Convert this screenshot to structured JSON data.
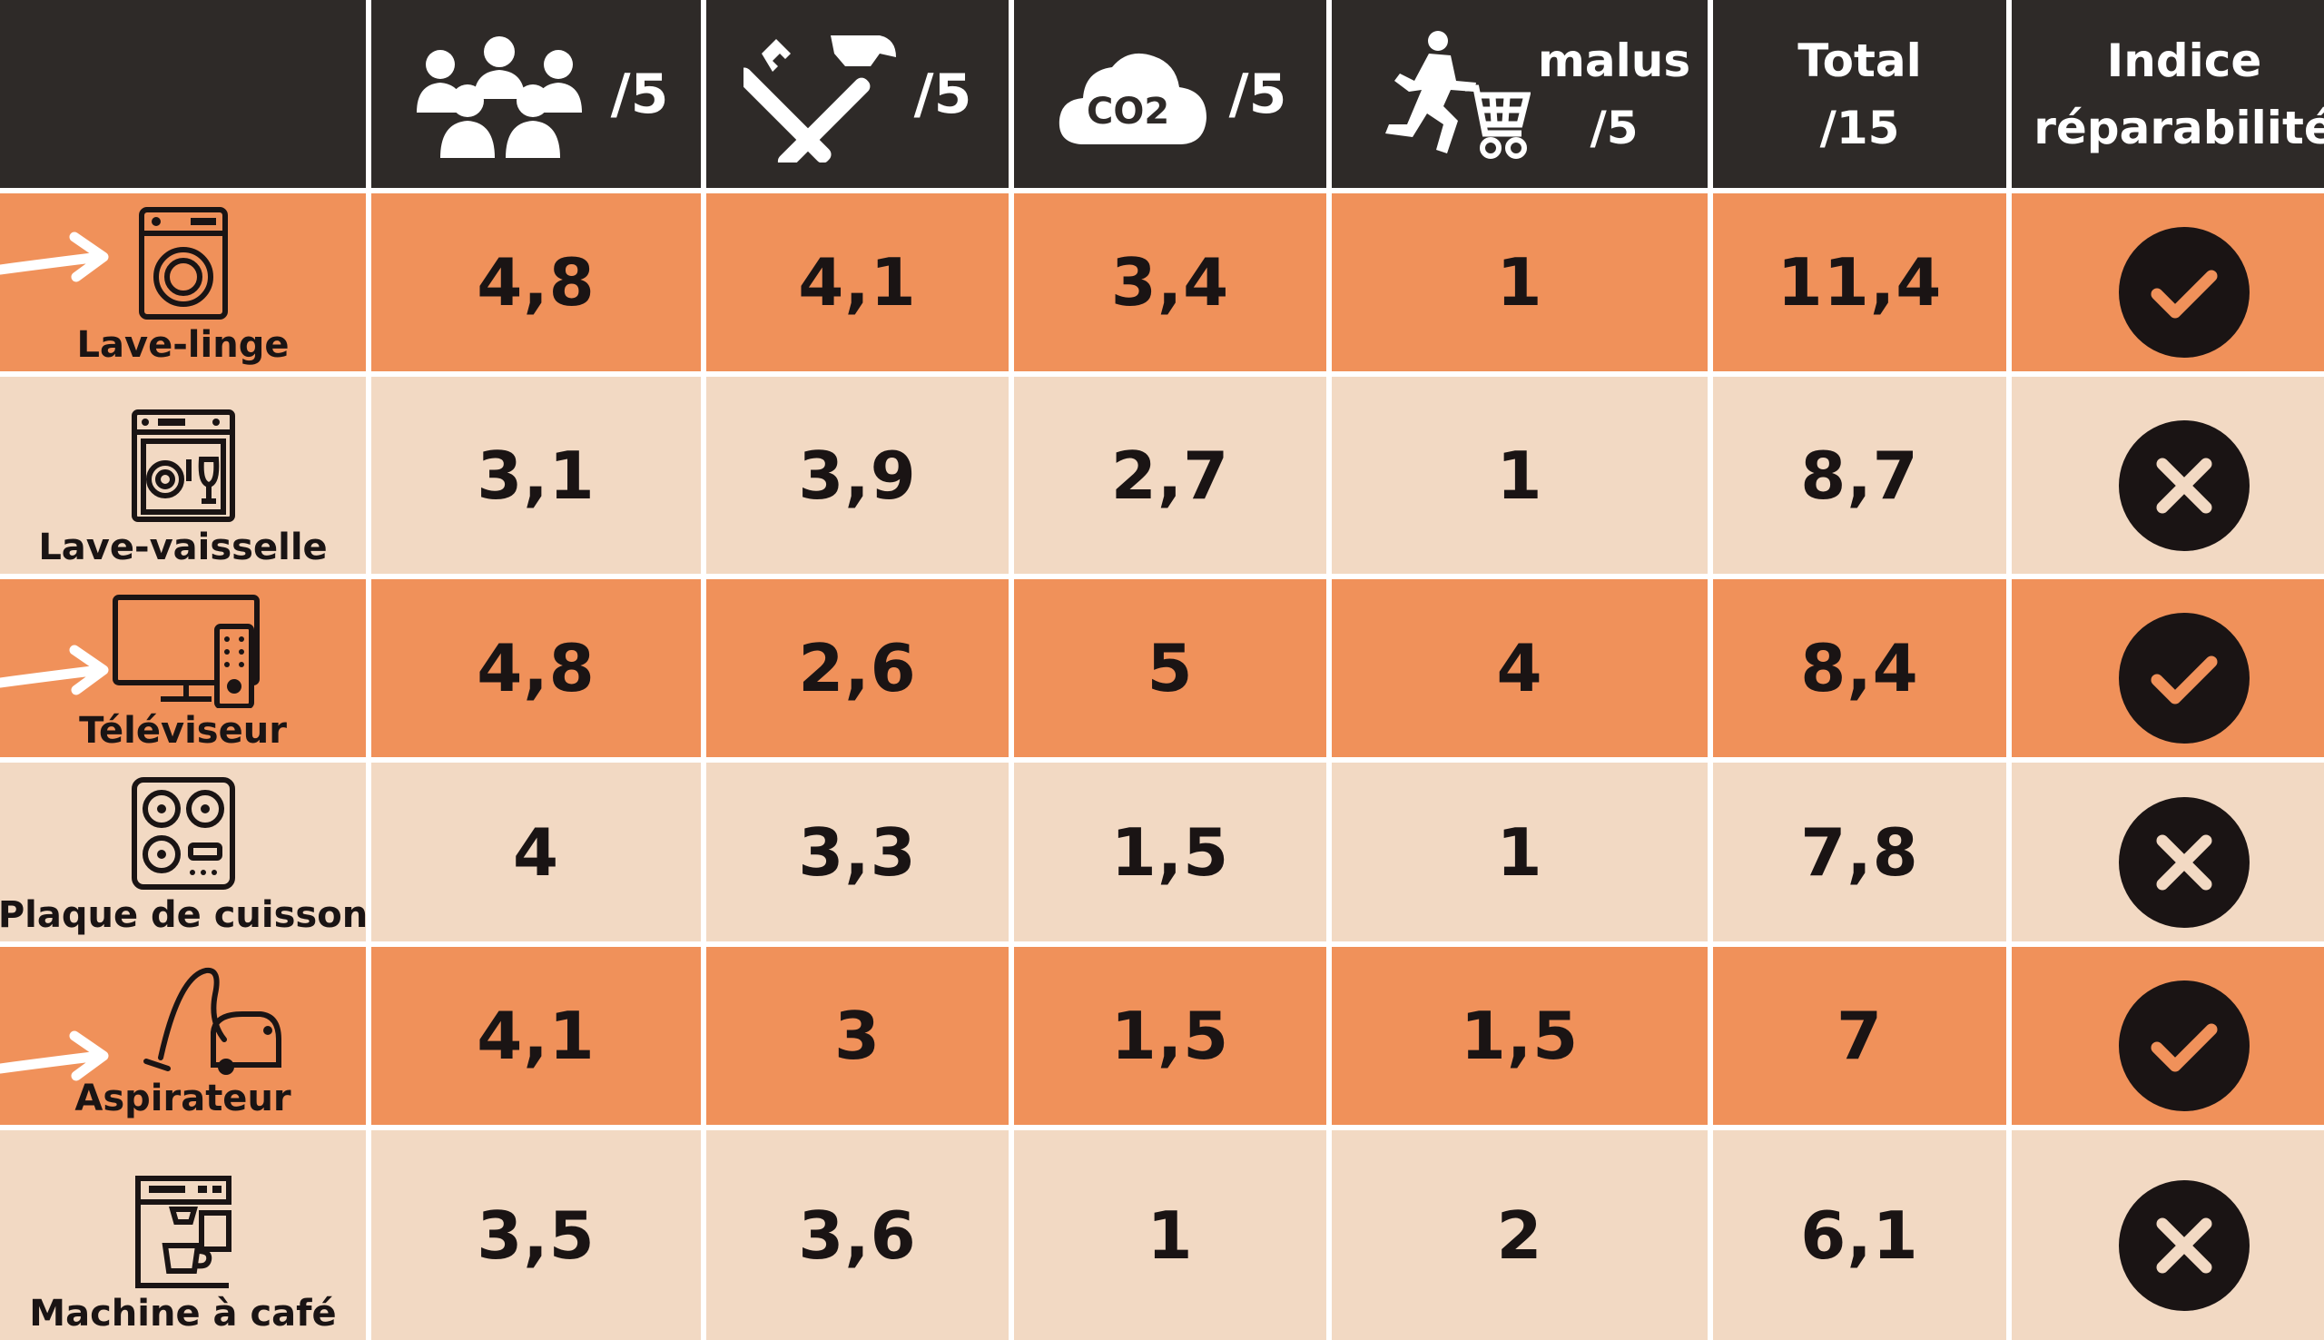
{
  "header": {
    "population_denom": "/5",
    "tools_denom": "/5",
    "co2_label": "CO2",
    "co2_denom": "/5",
    "malus_label": "malus",
    "malus_denom": "/5",
    "total_label": "Total",
    "total_denom": "/15",
    "index_line1": "Indice",
    "index_line2": "réparabilité"
  },
  "rows": [
    {
      "appliance": "Lave-linge",
      "icon": "washing-machine-icon",
      "arrow": true,
      "c1": "4,8",
      "c2": "4,1",
      "c3": "3,4",
      "c4": "1",
      "total": "11,4",
      "status": "check"
    },
    {
      "appliance": "Lave-vaisselle",
      "icon": "dishwasher-icon",
      "arrow": false,
      "c1": "3,1",
      "c2": "3,9",
      "c3": "2,7",
      "c4": "1",
      "total": "8,7",
      "status": "cross"
    },
    {
      "appliance": "Téléviseur",
      "icon": "television-icon",
      "arrow": true,
      "c1": "4,8",
      "c2": "2,6",
      "c3": "5",
      "c4": "4",
      "total": "8,4",
      "status": "check"
    },
    {
      "appliance": "Plaque de cuisson",
      "icon": "cooktop-icon",
      "arrow": false,
      "c1": "4",
      "c2": "3,3",
      "c3": "1,5",
      "c4": "1",
      "total": "7,8",
      "status": "cross"
    },
    {
      "appliance": "Aspirateur",
      "icon": "vacuum-cleaner-icon",
      "arrow": true,
      "c1": "4,1",
      "c2": "3",
      "c3": "1,5",
      "c4": "1,5",
      "total": "7",
      "status": "check"
    },
    {
      "appliance": "Machine à café",
      "icon": "coffee-machine-icon",
      "arrow": false,
      "c1": "3,5",
      "c2": "3,6",
      "c3": "1",
      "c4": "2",
      "total": "6,1",
      "status": "cross"
    }
  ],
  "colors": {
    "header_bg": "#2e2a28",
    "orange_row": "#f0915a",
    "beige_row": "#f2d9c3",
    "text_dark": "#1a1414"
  }
}
